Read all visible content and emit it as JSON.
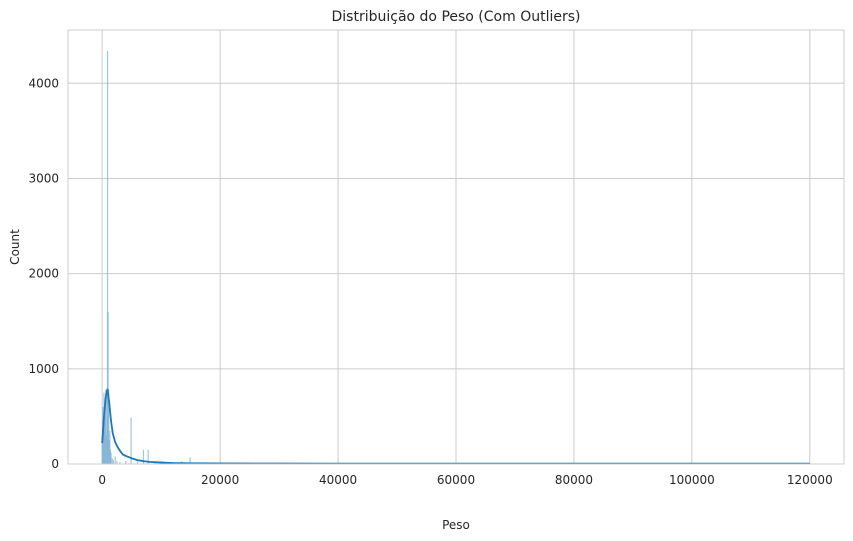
{
  "chart_data": {
    "type": "histogram",
    "title": "Distribuição do Peso (Com Outliers)",
    "xlabel": "Peso",
    "ylabel": "Count",
    "xlim": [
      -5800,
      125800
    ],
    "ylim": [
      0,
      4560
    ],
    "xticks": [
      0,
      20000,
      40000,
      60000,
      80000,
      100000,
      120000
    ],
    "yticks": [
      0,
      1000,
      2000,
      3000,
      4000
    ],
    "xtick_labels": [
      "0",
      "20000",
      "40000",
      "60000",
      "80000",
      "100000",
      "120000"
    ],
    "ytick_labels": [
      "0",
      "1000",
      "2000",
      "3000",
      "4000"
    ],
    "grid": true,
    "bar_color": "#7fb0d4",
    "kde_color": "#1f77b4",
    "bins": [
      {
        "x": 0,
        "count": 250
      },
      {
        "x": 100,
        "count": 600
      },
      {
        "x": 200,
        "count": 400
      },
      {
        "x": 300,
        "count": 750
      },
      {
        "x": 400,
        "count": 500
      },
      {
        "x": 500,
        "count": 650
      },
      {
        "x": 600,
        "count": 780
      },
      {
        "x": 700,
        "count": 300
      },
      {
        "x": 800,
        "count": 720
      },
      {
        "x": 900,
        "count": 4340
      },
      {
        "x": 1000,
        "count": 1600
      },
      {
        "x": 1100,
        "count": 780
      },
      {
        "x": 1200,
        "count": 250
      },
      {
        "x": 1300,
        "count": 350
      },
      {
        "x": 1400,
        "count": 150
      },
      {
        "x": 1500,
        "count": 120
      },
      {
        "x": 1700,
        "count": 60
      },
      {
        "x": 1900,
        "count": 40
      },
      {
        "x": 2200,
        "count": 80
      },
      {
        "x": 2500,
        "count": 30
      },
      {
        "x": 3000,
        "count": 20
      },
      {
        "x": 4000,
        "count": 30
      },
      {
        "x": 4900,
        "count": 490
      },
      {
        "x": 6000,
        "count": 20
      },
      {
        "x": 7000,
        "count": 150
      },
      {
        "x": 7800,
        "count": 150
      },
      {
        "x": 9000,
        "count": 15
      },
      {
        "x": 10000,
        "count": 30
      },
      {
        "x": 12000,
        "count": 20
      },
      {
        "x": 13500,
        "count": 30
      },
      {
        "x": 14900,
        "count": 70
      },
      {
        "x": 20000,
        "count": 5
      },
      {
        "x": 25000,
        "count": 15
      },
      {
        "x": 30000,
        "count": 5
      },
      {
        "x": 50000,
        "count": 5
      },
      {
        "x": 100000,
        "count": 3
      },
      {
        "x": 120000,
        "count": 3
      }
    ],
    "kde": {
      "x": [
        0,
        300,
        600,
        900,
        1200,
        1500,
        1800,
        2200,
        2600,
        3000,
        3500,
        4000,
        5000,
        6000,
        7000,
        8000,
        10000,
        12000,
        15000,
        20000,
        30000,
        40000,
        60000,
        80000,
        100000,
        120000
      ],
      "y": [
        220,
        500,
        700,
        790,
        640,
        450,
        320,
        230,
        180,
        140,
        100,
        85,
        60,
        40,
        30,
        22,
        15,
        10,
        8,
        6,
        5,
        4,
        4,
        4,
        4,
        4
      ]
    }
  }
}
